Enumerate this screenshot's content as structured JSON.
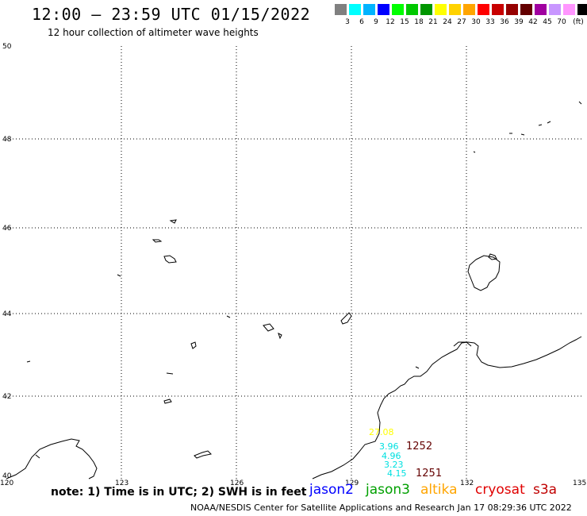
{
  "header": {
    "title": "12:00 – 23:59 UTC 01/15/2022",
    "subtitle": "12 hour collection of altimeter wave heights"
  },
  "legend": {
    "unit_label": "(ft)",
    "bins": [
      {
        "label": "",
        "color": "#808080"
      },
      {
        "label": "3",
        "color": "#00ffff"
      },
      {
        "label": "6",
        "color": "#00b4ff"
      },
      {
        "label": "9",
        "color": "#0000ff"
      },
      {
        "label": "12",
        "color": "#00ff00"
      },
      {
        "label": "15",
        "color": "#00c800"
      },
      {
        "label": "18",
        "color": "#009600"
      },
      {
        "label": "21",
        "color": "#ffff00"
      },
      {
        "label": "24",
        "color": "#ffd200"
      },
      {
        "label": "27",
        "color": "#ffa500"
      },
      {
        "label": "30",
        "color": "#ff0000"
      },
      {
        "label": "33",
        "color": "#c80000"
      },
      {
        "label": "36",
        "color": "#960000"
      },
      {
        "label": "39",
        "color": "#640000"
      },
      {
        "label": "42",
        "color": "#a000a0"
      },
      {
        "label": "45",
        "color": "#c896ff"
      },
      {
        "label": "70",
        "color": "#ff96ff"
      },
      {
        "label": "",
        "color": "#000000"
      }
    ]
  },
  "map": {
    "lat_ticks": [
      "50",
      "48",
      "46",
      "44",
      "42",
      "40"
    ],
    "lon_ticks": [
      "120",
      "123",
      "126",
      "129",
      "132",
      "135"
    ],
    "observations": [
      {
        "text": "27.08",
        "color": "#ffff00"
      },
      {
        "text": "3.96",
        "color": "#00e0e0"
      },
      {
        "text": "4.96",
        "color": "#00e0e0"
      },
      {
        "text": "3.23",
        "color": "#00e0e0"
      },
      {
        "text": "4.15",
        "color": "#00e0e0"
      }
    ],
    "pass_labels": [
      "1252",
      "1251"
    ]
  },
  "footer": {
    "note": "note: 1) Time is in UTC; 2) SWH is in feet",
    "satellites": [
      {
        "name": "jason2",
        "color": "#0000ff"
      },
      {
        "name": "jason3",
        "color": "#00a000"
      },
      {
        "name": "altika",
        "color": "#ffa500"
      },
      {
        "name": "cryosat",
        "color": "#e00000"
      },
      {
        "name": "s3a",
        "color": "#c00000"
      }
    ],
    "credit": "NOAA/NESDIS Center for Satellite Applications and Research    Jan 17 08:29:36 UTC 2022"
  }
}
